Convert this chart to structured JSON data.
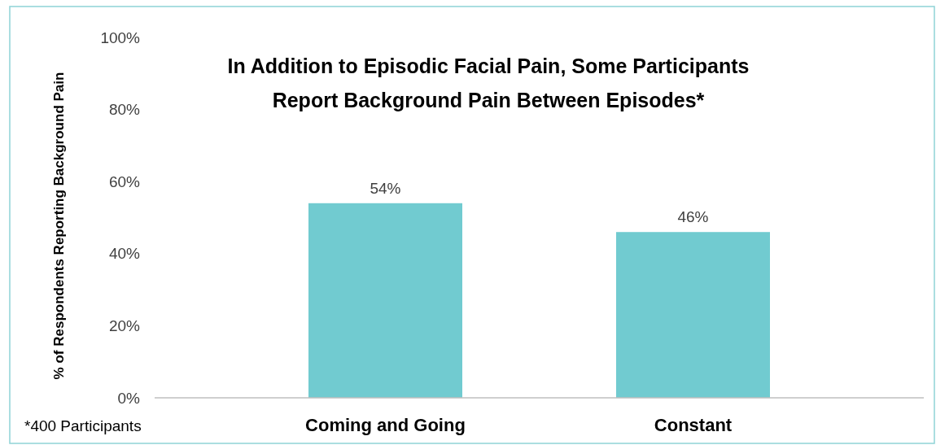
{
  "chart_data": {
    "type": "bar",
    "title": "In Addition to Episodic Facial Pain, Some Participants Report Background Pain Between Episodes*",
    "ylabel": "% of Respondents Reporting Background Pain",
    "categories": [
      "Coming and Going",
      "Constant"
    ],
    "values": [
      54,
      46
    ],
    "value_labels": [
      "54%",
      "46%"
    ],
    "color": "#71cbd0",
    "ylim": [
      0,
      100
    ],
    "yticks": [
      {
        "value": 0,
        "label": "0%"
      },
      {
        "value": 20,
        "label": "20%"
      },
      {
        "value": 40,
        "label": "40%"
      },
      {
        "value": 60,
        "label": "60%"
      },
      {
        "value": 80,
        "label": "80%"
      },
      {
        "value": 100,
        "label": "100%"
      }
    ],
    "grid": false,
    "annotations": [
      "*400 Participants"
    ]
  }
}
